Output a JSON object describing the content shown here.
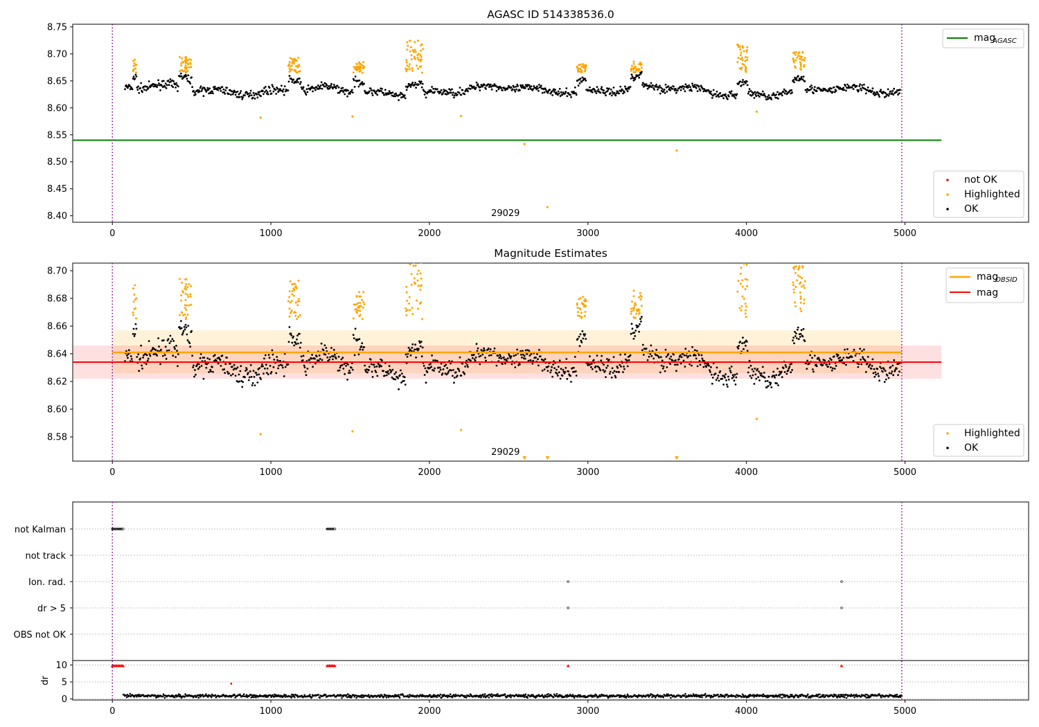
{
  "chart_data": [
    {
      "type": "scatter",
      "title": "AGASC ID 514338536.0",
      "xlim": [
        -250,
        5780
      ],
      "ylim": [
        8.388,
        8.755
      ],
      "xticks": [
        0,
        1000,
        2000,
        3000,
        4000,
        5000
      ],
      "yticks": [
        8.4,
        8.45,
        8.5,
        8.55,
        8.6,
        8.65,
        8.7,
        8.75
      ],
      "ytick_labels": [
        "8.40",
        "8.45",
        "8.50",
        "8.55",
        "8.60",
        "8.65",
        "8.70",
        "8.75"
      ],
      "obsid_label": "29029",
      "obsid_label_x": 2480,
      "vlines": [
        0,
        4980
      ],
      "hline": {
        "y": 8.54,
        "x_range": [
          -250,
          5230
        ],
        "color": "#008000"
      },
      "ok_range": [
        80,
        4970
      ],
      "baseline": 8.632,
      "highlight_clusters": [
        {
          "x0": 130,
          "x1": 155,
          "lo": 8.665,
          "hi": 8.69
        },
        {
          "x0": 420,
          "x1": 500,
          "lo": 8.665,
          "hi": 8.695
        },
        {
          "x0": 1110,
          "x1": 1190,
          "lo": 8.665,
          "hi": 8.695
        },
        {
          "x0": 1520,
          "x1": 1590,
          "lo": 8.665,
          "hi": 8.685
        },
        {
          "x0": 1850,
          "x1": 1960,
          "lo": 8.665,
          "hi": 8.725
        },
        {
          "x0": 2930,
          "x1": 2990,
          "lo": 8.665,
          "hi": 8.682
        },
        {
          "x0": 3270,
          "x1": 3340,
          "lo": 8.665,
          "hi": 8.686
        },
        {
          "x0": 3940,
          "x1": 4010,
          "lo": 8.665,
          "hi": 8.718
        },
        {
          "x0": 4290,
          "x1": 4370,
          "lo": 8.67,
          "hi": 8.705
        }
      ],
      "highlight_outliers": [
        {
          "x": 935,
          "y": 8.582
        },
        {
          "x": 1515,
          "y": 8.584
        },
        {
          "x": 2200,
          "y": 8.585
        },
        {
          "x": 2600,
          "y": 8.533
        },
        {
          "x": 3560,
          "y": 8.521
        },
        {
          "x": 2745,
          "y": 8.416
        },
        {
          "x": 4065,
          "y": 8.593
        }
      ],
      "legend_lines": [
        {
          "label": "mag",
          "subscript": "AGASC",
          "color": "#008000"
        }
      ],
      "legend_points": [
        {
          "label": "not OK",
          "color": "#ff0000"
        },
        {
          "label": "Highlighted",
          "color": "#ffa500"
        },
        {
          "label": "OK",
          "color": "#000000"
        }
      ]
    },
    {
      "type": "scatter",
      "title": "Magnitude Estimates",
      "xlim": [
        -250,
        5780
      ],
      "ylim": [
        8.5625,
        8.7055
      ],
      "xticks": [
        0,
        1000,
        2000,
        3000,
        4000,
        5000
      ],
      "yticks": [
        8.58,
        8.6,
        8.62,
        8.64,
        8.66,
        8.68,
        8.7
      ],
      "ytick_labels": [
        "8.58",
        "8.60",
        "8.62",
        "8.64",
        "8.66",
        "8.68",
        "8.70"
      ],
      "obsid_label": "29029",
      "obsid_label_x": 2480,
      "vlines": [
        0,
        4980
      ],
      "mag_obsid": {
        "y": 8.641,
        "band": [
          8.626,
          8.657
        ],
        "x_range": [
          0,
          4980
        ],
        "color": "#ffa500"
      },
      "mag": {
        "y": 8.634,
        "band": [
          8.622,
          8.646
        ],
        "x_range": [
          -250,
          5230
        ],
        "color": "#ff0000"
      },
      "offscale_markers_x": [
        2600,
        2745,
        3560
      ],
      "legend_lines": [
        {
          "label": "mag",
          "subscript": "OBSID",
          "color": "#ffa500"
        },
        {
          "label": "mag",
          "subscript": "",
          "color": "#ff0000"
        }
      ],
      "legend_points": [
        {
          "label": "Highlighted",
          "color": "#ffa500"
        },
        {
          "label": "OK",
          "color": "#000000"
        }
      ]
    },
    {
      "type": "scatter",
      "xlim": [
        -250,
        5780
      ],
      "xticks": [
        0,
        1000,
        2000,
        3000,
        4000,
        5000
      ],
      "flag_rows": [
        "not Kalman",
        "not track",
        "Ion. rad.",
        "dr > 5",
        "OBS not OK"
      ],
      "flag_points": [
        {
          "row": "not Kalman",
          "x0": 0,
          "x1": 70
        },
        {
          "row": "not Kalman",
          "x0": 1355,
          "x1": 1405
        },
        {
          "row": "Ion. rad.",
          "x0": 2875,
          "x1": 2875
        },
        {
          "row": "Ion. rad.",
          "x0": 4600,
          "x1": 4600
        },
        {
          "row": "dr > 5",
          "x0": 2875,
          "x1": 2875
        },
        {
          "row": "dr > 5",
          "x0": 4600,
          "x1": 4600
        }
      ],
      "dr_ylabel": "dr",
      "dr_ylim": [
        -0.3,
        11.3
      ],
      "dr_yticks": [
        0,
        5,
        10
      ],
      "dr_clipped_x": [
        [
          0,
          70
        ],
        [
          1355,
          1405
        ],
        [
          2875,
          2875
        ],
        [
          4600,
          4600
        ]
      ],
      "dr_red_point": {
        "x": 750,
        "y": 4.5
      },
      "vlines": [
        0,
        4980
      ]
    }
  ]
}
